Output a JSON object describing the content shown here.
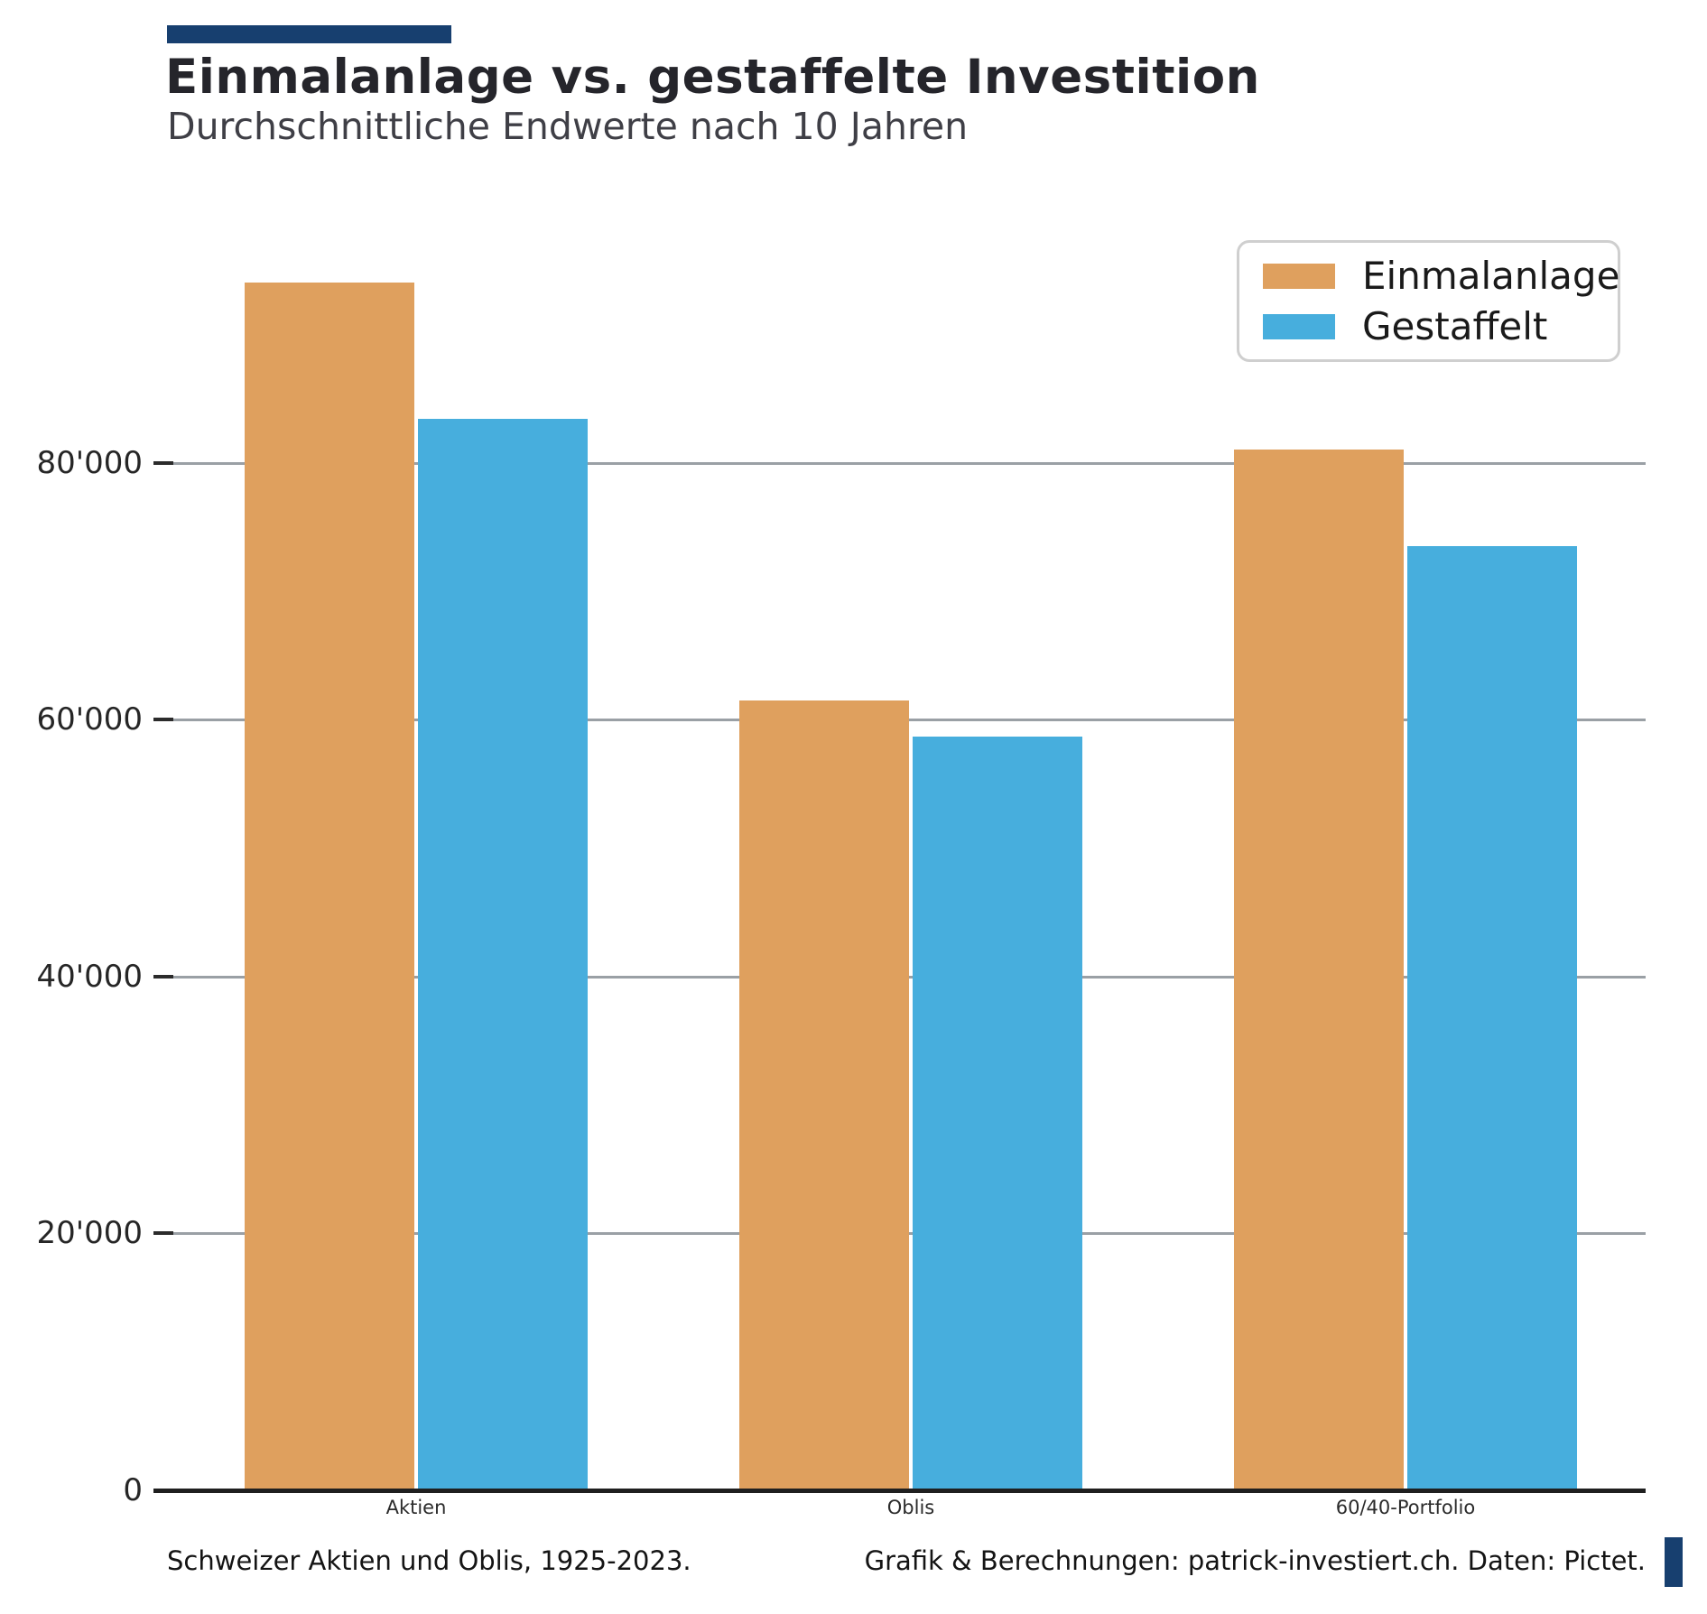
{
  "header": {
    "title": "Einmalanlage vs. gestaffelte Investition",
    "subtitle": "Durchschnittliche Endwerte nach 10 Jahren"
  },
  "legend": {
    "items": [
      {
        "label": "Einmalanlage",
        "color": "#dfa05e"
      },
      {
        "label": "Gestaffelt",
        "color": "#47aedd"
      }
    ]
  },
  "footer": {
    "left": "Schweizer Aktien und Oblis, 1925-2023.",
    "right": "Grafik & Berechnungen: patrick-investiert.ch. Daten: Pictet."
  },
  "colors": {
    "accent_navy": "#173f6f",
    "bar_einmalanlage": "#dfa05e",
    "bar_gestaffelt": "#47aedd",
    "gridline_gray": "#9aa0a5",
    "axis_dark": "#1f1f1f"
  },
  "chart_data": {
    "type": "bar",
    "title": "Einmalanlage vs. gestaffelte Investition",
    "subtitle": "Durchschnittliche Endwerte nach 10 Jahren",
    "categories": [
      "Aktien",
      "Oblis",
      "60/40-Portfolio"
    ],
    "series": [
      {
        "name": "Einmalanlage",
        "color": "#dfa05e",
        "values": [
          94000,
          61500,
          81000
        ]
      },
      {
        "name": "Gestaffelt",
        "color": "#47aedd",
        "values": [
          83400,
          58700,
          73500
        ]
      }
    ],
    "xlabel": "",
    "ylabel": "",
    "ytick_values": [
      0,
      20000,
      40000,
      60000,
      80000
    ],
    "ytick_labels": [
      "0",
      "20'000",
      "40'000",
      "60'000",
      "80'000"
    ],
    "ylim": [
      0,
      98800
    ],
    "grid": "horizontal-only",
    "legend_position": "upper-right"
  }
}
